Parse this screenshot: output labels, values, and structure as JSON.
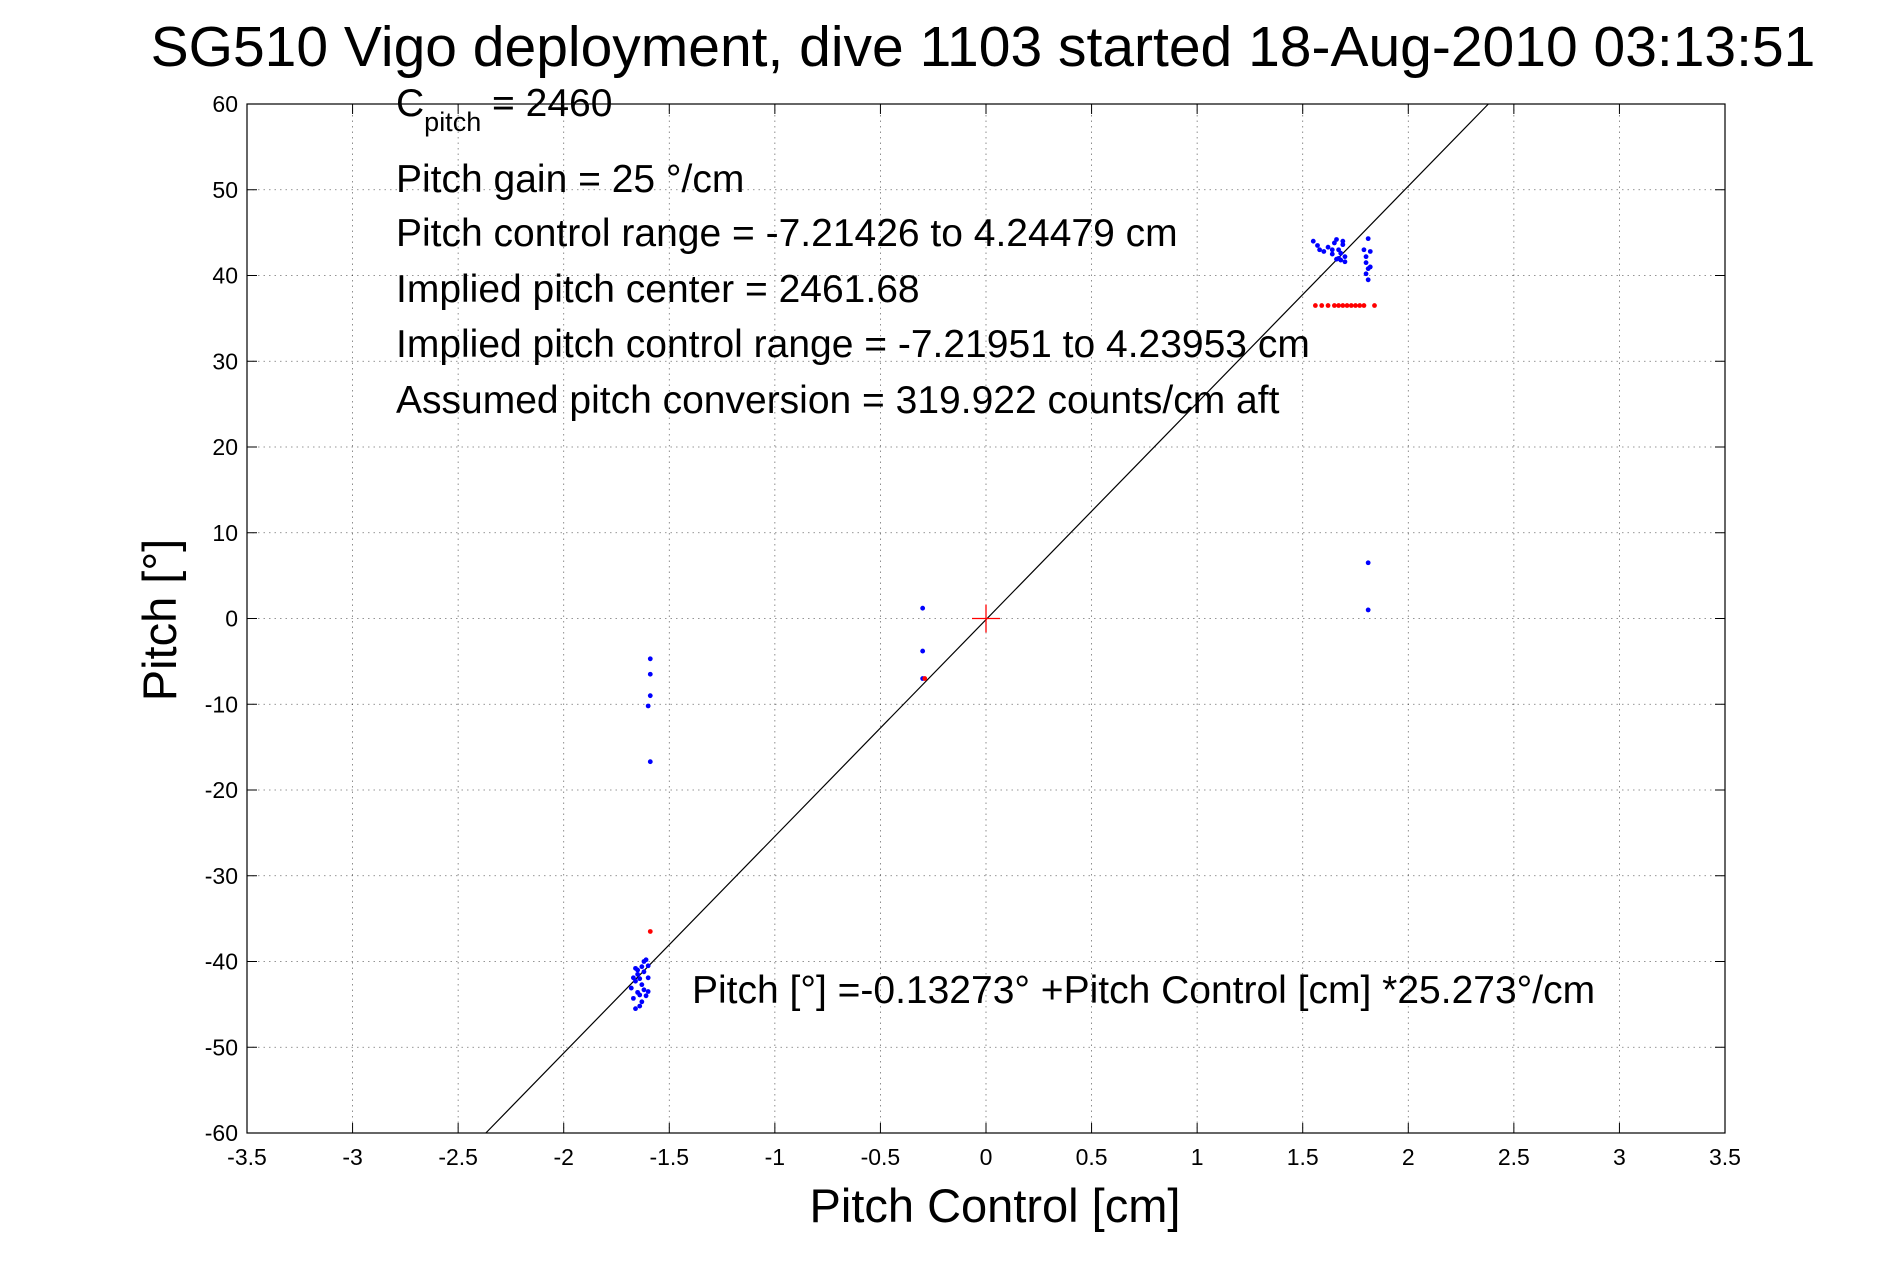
{
  "chart_data": {
    "type": "scatter",
    "title": "SG510 Vigo deployment, dive 1103 started 18-Aug-2010 03:13:51",
    "xlabel": "Pitch Control [cm]",
    "ylabel": "Pitch [°]",
    "xlim": [
      -3.5,
      3.5
    ],
    "ylim": [
      -60,
      60
    ],
    "xticks": [
      -3.5,
      -3,
      -2.5,
      -2,
      -1.5,
      -1,
      -0.5,
      0,
      0.5,
      1,
      1.5,
      2,
      2.5,
      3,
      3.5
    ],
    "yticks": [
      -60,
      -50,
      -40,
      -30,
      -20,
      -10,
      0,
      10,
      20,
      30,
      40,
      50,
      60
    ],
    "grid": true,
    "annotations": {
      "c_pitch_base": "C",
      "c_pitch_sub": "pitch",
      "c_pitch_value": " = 2460",
      "lines": [
        "Pitch gain = 25 °/cm",
        "Pitch control range = -7.21426 to 4.24479 cm",
        "Implied pitch center = 2461.68",
        "Implied pitch control range = -7.21951 to 4.23953 cm",
        "Assumed pitch conversion = 319.922 counts/cm aft"
      ],
      "fit_equation": "Pitch [°] =-0.13273° +Pitch Control [cm] *25.273°/cm"
    },
    "fit_line": {
      "intercept": -0.13273,
      "slope": 25.273,
      "color": "#000000"
    },
    "center_marker": {
      "x": 0,
      "y": 0,
      "color": "#ff0000"
    },
    "series": [
      {
        "color": "#0000ff",
        "points": [
          [
            1.55,
            44.0
          ],
          [
            1.57,
            43.5
          ],
          [
            1.58,
            43.0
          ],
          [
            1.6,
            42.8
          ],
          [
            1.62,
            43.3
          ],
          [
            1.64,
            42.5
          ],
          [
            1.65,
            43.8
          ],
          [
            1.66,
            44.2
          ],
          [
            1.67,
            42.0
          ],
          [
            1.67,
            43.0
          ],
          [
            1.68,
            41.8
          ],
          [
            1.68,
            42.6
          ],
          [
            1.69,
            43.6
          ],
          [
            1.7,
            42.2
          ],
          [
            1.7,
            41.6
          ],
          [
            1.66,
            41.9
          ],
          [
            1.64,
            43.0
          ],
          [
            1.69,
            44.0
          ],
          [
            1.79,
            43.0
          ],
          [
            1.8,
            42.2
          ],
          [
            1.8,
            41.5
          ],
          [
            1.81,
            40.8
          ],
          [
            1.8,
            40.2
          ],
          [
            1.81,
            39.5
          ],
          [
            1.82,
            42.8
          ],
          [
            1.81,
            44.3
          ],
          [
            1.82,
            41.0
          ],
          [
            1.81,
            6.5
          ],
          [
            1.81,
            1.0
          ],
          [
            -0.3,
            1.2
          ],
          [
            -0.3,
            -3.8
          ],
          [
            -0.3,
            -7.0
          ],
          [
            -1.59,
            -4.7
          ],
          [
            -1.59,
            -6.5
          ],
          [
            -1.59,
            -9.0
          ],
          [
            -1.6,
            -10.2
          ],
          [
            -1.59,
            -16.7
          ],
          [
            -1.66,
            -40.8
          ],
          [
            -1.65,
            -41.5
          ],
          [
            -1.64,
            -42.0
          ],
          [
            -1.63,
            -42.7
          ],
          [
            -1.62,
            -43.3
          ],
          [
            -1.61,
            -44.0
          ],
          [
            -1.6,
            -40.5
          ],
          [
            -1.62,
            -41.2
          ],
          [
            -1.63,
            -44.7
          ],
          [
            -1.64,
            -45.2
          ],
          [
            -1.65,
            -43.6
          ],
          [
            -1.66,
            -42.3
          ],
          [
            -1.67,
            -41.9
          ],
          [
            -1.68,
            -43.1
          ],
          [
            -1.67,
            -44.3
          ],
          [
            -1.66,
            -45.5
          ],
          [
            -1.61,
            -39.8
          ],
          [
            -1.62,
            -40.0
          ],
          [
            -1.6,
            -41.9
          ],
          [
            -1.63,
            -40.6
          ],
          [
            -1.64,
            -43.9
          ],
          [
            -1.65,
            -41.0
          ],
          [
            -1.6,
            -43.5
          ]
        ]
      },
      {
        "color": "#ff0000",
        "points": [
          [
            1.56,
            36.5
          ],
          [
            1.59,
            36.5
          ],
          [
            1.62,
            36.5
          ],
          [
            1.65,
            36.5
          ],
          [
            1.67,
            36.5
          ],
          [
            1.69,
            36.5
          ],
          [
            1.71,
            36.5
          ],
          [
            1.73,
            36.5
          ],
          [
            1.75,
            36.5
          ],
          [
            1.77,
            36.5
          ],
          [
            1.79,
            36.5
          ],
          [
            1.84,
            36.5
          ],
          [
            -0.29,
            -7.0
          ],
          [
            -1.59,
            -36.5
          ]
        ]
      }
    ]
  }
}
